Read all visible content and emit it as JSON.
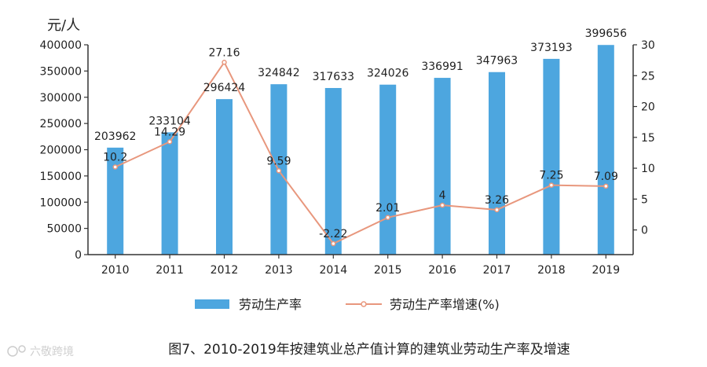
{
  "chart_data": {
    "type": "bar+line",
    "categories": [
      "2010",
      "2011",
      "2012",
      "2013",
      "2014",
      "2015",
      "2016",
      "2017",
      "2018",
      "2019"
    ],
    "series": [
      {
        "name": "劳动生产率",
        "type": "bar",
        "axis": "left",
        "values": [
          203962,
          233104,
          296424,
          324842,
          317633,
          324026,
          336991,
          347963,
          373193,
          399656
        ]
      },
      {
        "name": "劳动生产率增速(%)",
        "type": "line",
        "axis": "right",
        "values": [
          10.2,
          14.29,
          27.16,
          9.59,
          -2.22,
          2.01,
          4,
          3.26,
          7.25,
          7.09
        ]
      }
    ],
    "y_left": {
      "label": "元/人",
      "ylim": [
        0,
        400000
      ],
      "ticks": [
        0,
        50000,
        100000,
        150000,
        200000,
        250000,
        300000,
        350000,
        400000
      ]
    },
    "y_right": {
      "ylim": [
        -4,
        30
      ],
      "ticks": [
        0,
        5,
        10,
        15,
        20,
        25,
        30
      ]
    },
    "legend": "bottom",
    "grid": false,
    "caption": "图7、2010-2019年按建筑业总产值计算的建筑业劳动生产率及增速",
    "colors": {
      "bar": "#4da6df",
      "line": "#e8977d",
      "axis": "#333333"
    }
  },
  "watermark_text": "六敬跨境"
}
